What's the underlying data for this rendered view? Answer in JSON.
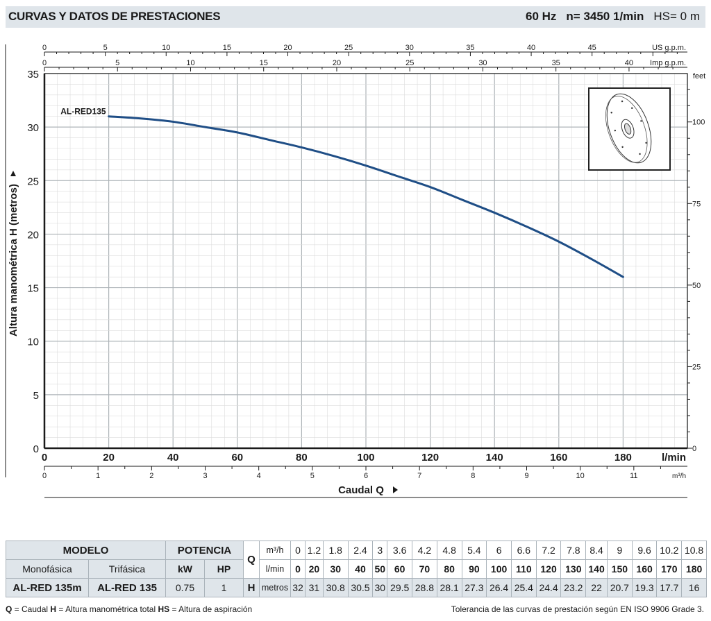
{
  "header": {
    "title": "CURVAS Y DATOS DE PRESTACIONES",
    "freq": "60 Hz",
    "speed": "n= 3450  1/min",
    "hs": "HS= 0 m"
  },
  "colors": {
    "curve": "#1f4e86",
    "header_bg": "#dfe5ea",
    "grid": "#c8c8c8"
  },
  "chart_data": {
    "type": "line",
    "series": [
      {
        "name": "AL-RED135",
        "x": [
          20,
          30,
          40,
          50,
          60,
          70,
          80,
          90,
          100,
          110,
          120,
          130,
          140,
          150,
          160,
          170,
          180
        ],
        "y": [
          31,
          30.8,
          30.5,
          30,
          29.5,
          28.8,
          28.1,
          27.3,
          26.4,
          25.4,
          24.4,
          23.2,
          22,
          20.7,
          19.3,
          17.7,
          16
        ]
      }
    ],
    "xlabel": "Caudal  Q",
    "ylabel": "Altura manométrica  H  (metros)",
    "xlim": [
      0,
      200
    ],
    "ylim": [
      0,
      35
    ],
    "x_ticks_lmin": [
      "0",
      "20",
      "40",
      "60",
      "80",
      "100",
      "120",
      "140",
      "160",
      "180"
    ],
    "x_unit_lmin": "l/min",
    "x_ticks_m3h": [
      "0",
      "1",
      "2",
      "3",
      "4",
      "5",
      "6",
      "7",
      "8",
      "9",
      "10",
      "11"
    ],
    "x_unit_m3h": "m³/h",
    "top_ticks_us": [
      "0",
      "5",
      "10",
      "15",
      "20",
      "25",
      "30",
      "35",
      "40",
      "45"
    ],
    "top_unit_us": "US g.p.m.",
    "top_ticks_imp": [
      "0",
      "5",
      "10",
      "15",
      "20",
      "25",
      "30",
      "35",
      "40"
    ],
    "top_unit_imp": "Imp g.p.m.",
    "y_ticks": [
      "0",
      "5",
      "10",
      "15",
      "20",
      "25",
      "30",
      "35"
    ],
    "y_ticks_feet": [
      "0",
      "25",
      "50",
      "75",
      "100"
    ],
    "y_unit_feet": "feet",
    "grid": true
  },
  "table": {
    "modelo": "MODELO",
    "potencia": "POTENCIA",
    "monofasica": "Monofásica",
    "trifasica": "Trifásica",
    "kw": "kW",
    "hp": "HP",
    "q_label": "Q",
    "m3h_label": "m³/h",
    "lmin_label": "l/min",
    "h_label": "H",
    "metros_label": "metros",
    "m3h": [
      "0",
      "1.2",
      "1.8",
      "2.4",
      "3",
      "3.6",
      "4.2",
      "4.8",
      "5.4",
      "6",
      "6.6",
      "7.2",
      "7.8",
      "8.4",
      "9",
      "9.6",
      "10.2",
      "10.8"
    ],
    "lmin": [
      "0",
      "20",
      "30",
      "40",
      "50",
      "60",
      "70",
      "80",
      "90",
      "100",
      "110",
      "120",
      "130",
      "140",
      "150",
      "160",
      "170",
      "180"
    ],
    "row": {
      "mono": "AL-RED 135m",
      "tri": "AL-RED 135",
      "kw": "0.75",
      "hp": "1",
      "h": [
        "32",
        "31",
        "30.8",
        "30.5",
        "30",
        "29.5",
        "28.8",
        "28.1",
        "27.3",
        "26.4",
        "25.4",
        "24.4",
        "23.2",
        "22",
        "20.7",
        "19.3",
        "17.7",
        "16"
      ]
    }
  },
  "footer": {
    "legend_q": "Q",
    "legend_q_text": " = Caudal  ",
    "legend_h": "H",
    "legend_h_text": " = Altura manométrica total  ",
    "legend_hs": "HS",
    "legend_hs_text": " = Altura de aspiración",
    "tolerance": "Tolerancia de las curvas de prestación según EN ISO 9906 Grade 3."
  }
}
